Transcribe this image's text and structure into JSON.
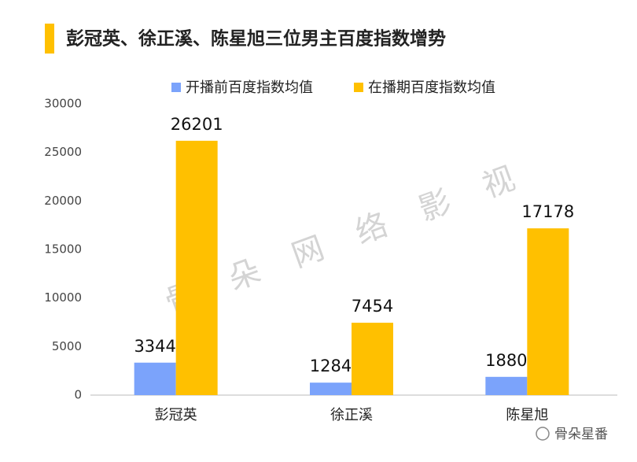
{
  "chart_data": {
    "type": "bar",
    "title": "彭冠英、徐正溪、陈星旭三位男主百度指数增势",
    "categories": [
      "彭冠英",
      "徐正溪",
      "陈星旭"
    ],
    "series": [
      {
        "name": "开播前百度指数均值",
        "color": "#7ba3fb",
        "values": [
          3344,
          1284,
          1880
        ]
      },
      {
        "name": "在播期百度指数均值",
        "color": "#ffc000",
        "values": [
          26201,
          7454,
          17178
        ]
      }
    ],
    "ylim": [
      0,
      30000
    ],
    "yticks": [
      0,
      5000,
      10000,
      15000,
      20000,
      25000,
      30000
    ],
    "grid": false,
    "legend": "top",
    "watermark": "骨朵网络影视",
    "source": "骨朵星番"
  }
}
